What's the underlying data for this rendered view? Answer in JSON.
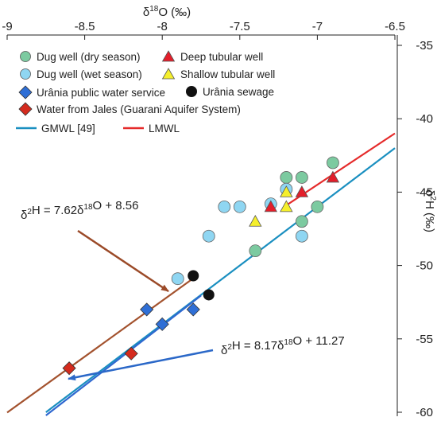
{
  "chart_data": {
    "type": "scatter",
    "xlabel": "δ18O (‰)",
    "ylabel": "δ2H (‰)",
    "x_axis_position": "top",
    "y_axis_position": "right",
    "xlim": [
      -9,
      -6.5
    ],
    "ylim": [
      -60,
      -35
    ],
    "xticks": [
      -9,
      -8.5,
      -8,
      -7.5,
      -7,
      -6.5
    ],
    "yticks": [
      -35,
      -40,
      -45,
      -50,
      -55,
      -60
    ],
    "xtick_labels": [
      "-9",
      "-8.5",
      "-8",
      "-7.5",
      "-7",
      "-6.5"
    ],
    "ytick_labels": [
      "-35",
      "-40",
      "-45",
      "-50",
      "-55",
      "-60"
    ],
    "grid": false,
    "legend_position": "top-left",
    "colors": {
      "dug_dry": "#7ccaa0",
      "dug_wet": "#8fd6f2",
      "deep": "#e31e2a",
      "shallow": "#f5ef2c",
      "public": "#2f6fd6",
      "sewage": "#111111",
      "jales": "#d42b1e",
      "gmwl": "#1a8fc0",
      "lmwl": "#e52a2a",
      "arrow_brown": "#9b4a28",
      "arrow_blue": "#2b68c8",
      "line_brown": "#a3522e",
      "line_blue": "#2f68d0"
    },
    "series": [
      {
        "name": "Dug well (dry season)",
        "marker": "circle",
        "points": [
          [
            -7.2,
            -44
          ],
          [
            -7.1,
            -44
          ],
          [
            -6.9,
            -43
          ],
          [
            -7.1,
            -47
          ],
          [
            -7.0,
            -46
          ],
          [
            -7.4,
            -49
          ]
        ]
      },
      {
        "name": "Dug well (wet season)",
        "marker": "circle",
        "points": [
          [
            -7.6,
            -46
          ],
          [
            -7.5,
            -46
          ],
          [
            -7.3,
            -45.8
          ],
          [
            -7.2,
            -44.8
          ],
          [
            -7.7,
            -48
          ],
          [
            -7.1,
            -48
          ],
          [
            -7.9,
            -50.9
          ]
        ]
      },
      {
        "name": "Deep tubular well",
        "marker": "triangle",
        "points": [
          [
            -7.3,
            -46
          ],
          [
            -7.1,
            -45
          ],
          [
            -6.9,
            -44
          ]
        ]
      },
      {
        "name": "Shallow tubular well",
        "marker": "triangle",
        "points": [
          [
            -7.4,
            -47
          ],
          [
            -7.2,
            -45
          ],
          [
            -7.2,
            -46
          ]
        ]
      },
      {
        "name": "Urânia public water service",
        "marker": "diamond",
        "points": [
          [
            -8.1,
            -53
          ],
          [
            -8.0,
            -54
          ],
          [
            -7.8,
            -53
          ]
        ]
      },
      {
        "name": "Urânia sewage",
        "marker": "circle",
        "points": [
          [
            -7.8,
            -50.7
          ],
          [
            -7.7,
            -52
          ]
        ]
      },
      {
        "name": "Water from Jales (Guarani Aquifer System)",
        "marker": "diamond",
        "points": [
          [
            -8.6,
            -57
          ],
          [
            -8.2,
            -56
          ]
        ]
      }
    ],
    "lines": [
      {
        "name": "GMWL [49]",
        "slope": 8.0,
        "intercept": 10.0,
        "x_range": [
          -8.75,
          -6.5
        ]
      },
      {
        "name": "LMWL",
        "slope": 7.0,
        "intercept": 4.5,
        "x_range": [
          -7.2,
          -6.5
        ]
      },
      {
        "name": "",
        "slope": 7.62,
        "intercept": 8.56,
        "x_range": [
          -9.0,
          -7.8
        ]
      },
      {
        "name": "",
        "slope": 8.17,
        "intercept": 11.27,
        "x_range": [
          -8.75,
          -7.75
        ]
      }
    ],
    "legend": {
      "dug_dry": "Dug well (dry season)",
      "deep": "Deep tubular well",
      "dug_wet": "Dug well (wet season)",
      "shallow": "Shallow tubular well",
      "public": "Urânia public water service",
      "sewage": "Urânia sewage",
      "jales": "Water from Jales (Guarani Aquifer System)",
      "gmwl": "GMWL [49]",
      "lmwl": "LMWL"
    },
    "annotations": {
      "eq1": "δ2H = 7.62δ18O + 8.56",
      "eq2": "δ2H = 8.17δ18O + 11.27"
    }
  }
}
